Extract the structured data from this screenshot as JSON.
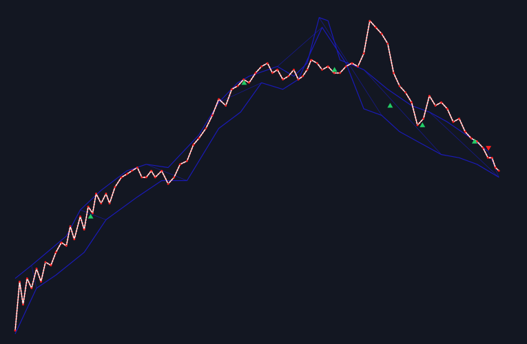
{
  "chart_data": {
    "type": "line",
    "title": "",
    "xlabel": "",
    "ylabel": "",
    "grid": false,
    "legend": "none",
    "xlim": [
      0,
      100
    ],
    "ylim": [
      0,
      100
    ],
    "colors": {
      "background": "#131722",
      "price_line": "#ffffff",
      "price_dots": "#ff2020",
      "envelope": "#1a1ab8",
      "signal_up": "#22cc66",
      "signal_down": "#ff2020"
    },
    "series": [
      {
        "name": "price",
        "x": [
          0,
          0.9,
          1.6,
          2.4,
          3.3,
          4.3,
          5.2,
          6.1,
          7.2,
          8.2,
          9.3,
          10.3,
          11.1,
          11.9,
          13.1,
          13.9,
          14.7,
          15.6,
          16.3,
          17.3,
          18.3,
          19.0,
          20.1,
          21.4,
          22.5,
          23.5,
          24.6,
          25.5,
          26.4,
          27.4,
          28.2,
          29.5,
          30.8,
          32.0,
          33.2,
          34.6,
          35.9,
          37.0,
          38.4,
          39.7,
          41.0,
          42.4,
          43.6,
          44.8,
          46.0,
          47.1,
          48.4,
          49.6,
          50.8,
          51.8,
          52.8,
          53.9,
          55.0,
          56.1,
          57.0,
          57.9,
          58.8,
          59.6,
          60.8,
          61.8,
          63.0,
          64.2,
          65.4,
          66.6,
          67.8,
          69.0,
          70.2,
          71.4,
          72.6,
          73.8,
          75.0,
          76.2,
          77.4,
          78.6,
          79.8,
          81.0,
          82.2,
          83.4,
          84.6,
          85.8,
          87.0,
          88.2,
          89.4,
          90.6,
          91.8,
          93.0,
          94.2,
          95.2,
          96.0,
          96.7,
          97.4
        ],
        "y": [
          2,
          17,
          10,
          18,
          15,
          21,
          17,
          23,
          22,
          26,
          29,
          28,
          34,
          30,
          37,
          33,
          40,
          38,
          44,
          41,
          44,
          41,
          46,
          49,
          50,
          51,
          52,
          49,
          49,
          51,
          49,
          51,
          47,
          49,
          53,
          54,
          59,
          61,
          64,
          68,
          73,
          71,
          76,
          77,
          79,
          78,
          81,
          83,
          84,
          81,
          82,
          79,
          80,
          82,
          79,
          80,
          82,
          85,
          84,
          82,
          83,
          81,
          81,
          83,
          84,
          83,
          87,
          97,
          95,
          93,
          90,
          81,
          77,
          75,
          72,
          65,
          67,
          74,
          71,
          72,
          70,
          66,
          67,
          63,
          61,
          60,
          58,
          55,
          55,
          52,
          51
        ]
      },
      {
        "name": "upper_envelope",
        "x": [
          0,
          3.3,
          7.2,
          10.3,
          13.1,
          17.3,
          22.5,
          26.4,
          30.8,
          37.0,
          41.0,
          44.8,
          47.1,
          52.8,
          56.1,
          58.8,
          61.2,
          63.0,
          65.4,
          70.2,
          75.0,
          79.8,
          83.4,
          87.0,
          91.8,
          95.2
        ],
        "y": [
          18,
          22,
          27,
          31,
          39,
          45,
          51,
          53,
          52,
          62,
          72,
          78,
          80,
          83,
          80,
          84,
          98,
          97,
          85,
          82,
          76,
          71,
          69,
          66,
          61,
          57
        ]
      },
      {
        "name": "lower_envelope",
        "x": [
          0,
          4.3,
          8.2,
          13.9,
          18.3,
          24.6,
          29.5,
          34.6,
          41.0,
          45.4,
          49.6,
          53.9,
          57.0,
          61.8,
          66.6,
          70.2,
          73.8,
          77.4,
          81.0,
          85.8,
          89.4,
          93.0,
          97.4
        ],
        "y": [
          1,
          15,
          19,
          26,
          36,
          43,
          48,
          48,
          64,
          69,
          78,
          76,
          79,
          95,
          84,
          70,
          68,
          63,
          60,
          56,
          55,
          53,
          49
        ]
      }
    ],
    "signals": [
      {
        "type": "up",
        "x": 15.2,
        "y": 37
      },
      {
        "type": "up",
        "x": 46.1,
        "y": 78
      },
      {
        "type": "up",
        "x": 64.3,
        "y": 82
      },
      {
        "type": "up",
        "x": 75.5,
        "y": 71
      },
      {
        "type": "up",
        "x": 82.0,
        "y": 65
      },
      {
        "type": "up",
        "x": 92.5,
        "y": 60
      },
      {
        "type": "down",
        "x": 95.3,
        "y": 58
      }
    ]
  }
}
